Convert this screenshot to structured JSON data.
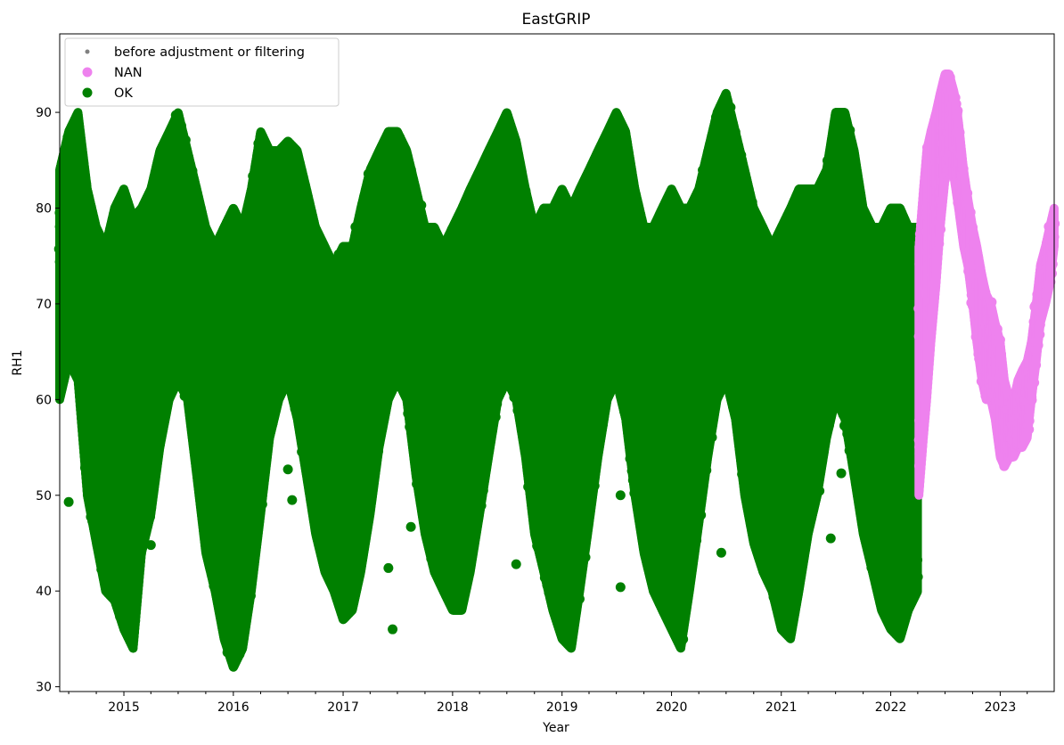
{
  "chart_data": {
    "type": "scatter",
    "title": "EastGRIP",
    "xlabel": "Year",
    "ylabel": "RH1",
    "xlim": [
      "2014-06-01",
      "2023-06-30"
    ],
    "ylim": [
      29.5,
      98.2
    ],
    "x_ticks": [
      "2015",
      "2016",
      "2017",
      "2018",
      "2019",
      "2020",
      "2021",
      "2022",
      "2023"
    ],
    "y_ticks": [
      30,
      40,
      50,
      60,
      70,
      80,
      90
    ],
    "grid": false,
    "legend": {
      "placement": "upper-left",
      "entries": [
        {
          "label": "before adjustment or filtering",
          "color": "#808080",
          "marker": "small-dot"
        },
        {
          "label": "NAN",
          "color": "#ee82ee",
          "marker": "dot"
        },
        {
          "label": "OK",
          "color": "#008000",
          "marker": "dot"
        }
      ]
    },
    "series": [
      {
        "name": "OK",
        "color": "#008000",
        "x": [
          "2014-06-01",
          "2014-07-01",
          "2014-08-01",
          "2014-09-01",
          "2014-10-01",
          "2014-11-01",
          "2014-12-01",
          "2015-01-01",
          "2015-02-01",
          "2015-03-01",
          "2015-04-01",
          "2015-05-01",
          "2015-06-01",
          "2015-07-01",
          "2015-08-01",
          "2015-09-01",
          "2015-10-01",
          "2015-11-01",
          "2015-12-01",
          "2016-01-01",
          "2016-02-01",
          "2016-03-01",
          "2016-04-01",
          "2016-05-01",
          "2016-06-01",
          "2016-07-01",
          "2016-08-01",
          "2016-09-01",
          "2016-10-01",
          "2016-11-01",
          "2016-12-01",
          "2017-01-01",
          "2017-02-01",
          "2017-03-01",
          "2017-04-01",
          "2017-05-01",
          "2017-06-01",
          "2017-07-01",
          "2017-08-01",
          "2017-09-01",
          "2017-10-01",
          "2017-11-01",
          "2017-12-01",
          "2018-01-01",
          "2018-02-01",
          "2018-03-01",
          "2018-04-01",
          "2018-05-01",
          "2018-06-01",
          "2018-07-01",
          "2018-08-01",
          "2018-09-01",
          "2018-10-01",
          "2018-11-01",
          "2018-12-01",
          "2019-01-01",
          "2019-02-01",
          "2019-03-01",
          "2019-04-01",
          "2019-05-01",
          "2019-06-01",
          "2019-07-01",
          "2019-08-01",
          "2019-09-01",
          "2019-10-01",
          "2019-11-01",
          "2019-12-01",
          "2020-01-01",
          "2020-02-01",
          "2020-03-01",
          "2020-04-01",
          "2020-05-01",
          "2020-06-01",
          "2020-07-01",
          "2020-08-01",
          "2020-09-01",
          "2020-10-01",
          "2020-11-01",
          "2020-12-01",
          "2021-01-01",
          "2021-02-01",
          "2021-03-01",
          "2021-04-01",
          "2021-05-01",
          "2021-06-01",
          "2021-07-01",
          "2021-08-01",
          "2021-09-01",
          "2021-10-01",
          "2021-11-01",
          "2021-12-01",
          "2022-01-01",
          "2022-02-01",
          "2022-03-01",
          "2022-04-01"
        ],
        "y_min": [
          60,
          64,
          62,
          50,
          45,
          40,
          39,
          36,
          34,
          44,
          48,
          55,
          60,
          62,
          60,
          52,
          44,
          40,
          35,
          32,
          34,
          40,
          48,
          56,
          60,
          62,
          58,
          52,
          46,
          42,
          40,
          37,
          38,
          42,
          48,
          55,
          60,
          62,
          60,
          52,
          46,
          42,
          40,
          38,
          38,
          42,
          48,
          54,
          60,
          62,
          60,
          54,
          46,
          42,
          38,
          35,
          34,
          40,
          47,
          54,
          60,
          62,
          58,
          50,
          44,
          40,
          38,
          36,
          34,
          40,
          47,
          54,
          60,
          62,
          58,
          50,
          45,
          42,
          40,
          36,
          35,
          40,
          46,
          50,
          56,
          60,
          58,
          52,
          46,
          42,
          38,
          36,
          35,
          38,
          40
        ],
        "y_max": [
          84,
          88,
          90,
          82,
          78,
          76,
          80,
          82,
          79,
          80,
          82,
          86,
          88,
          90,
          86,
          82,
          78,
          76,
          78,
          80,
          78,
          82,
          88,
          86,
          86,
          87,
          86,
          82,
          78,
          76,
          74,
          76,
          76,
          80,
          84,
          86,
          88,
          88,
          86,
          82,
          78,
          78,
          76,
          78,
          80,
          82,
          84,
          86,
          88,
          90,
          87,
          82,
          78,
          80,
          80,
          82,
          80,
          82,
          84,
          86,
          88,
          90,
          88,
          82,
          78,
          78,
          80,
          82,
          80,
          80,
          82,
          86,
          90,
          92,
          88,
          84,
          80,
          78,
          76,
          78,
          80,
          82,
          82,
          82,
          84,
          90,
          90,
          86,
          80,
          78,
          78,
          80,
          80,
          78,
          78
        ],
        "outliers": [
          {
            "x": "2014-07-01",
            "y": 49.3
          },
          {
            "x": "2015-04-01",
            "y": 44.8
          },
          {
            "x": "2016-07-01",
            "y": 52.7
          },
          {
            "x": "2016-07-15",
            "y": 49.5
          },
          {
            "x": "2017-06-15",
            "y": 36.0
          },
          {
            "x": "2017-06-01",
            "y": 42.4
          },
          {
            "x": "2017-08-15",
            "y": 46.7
          },
          {
            "x": "2018-08-01",
            "y": 42.8
          },
          {
            "x": "2019-07-15",
            "y": 50.0
          },
          {
            "x": "2019-07-15",
            "y": 40.4
          },
          {
            "x": "2020-06-15",
            "y": 44.0
          },
          {
            "x": "2021-06-15",
            "y": 45.5
          },
          {
            "x": "2021-07-20",
            "y": 52.3
          }
        ]
      },
      {
        "name": "NAN",
        "color": "#ee82ee",
        "x": [
          "2022-04-05",
          "2022-04-20",
          "2022-05-01",
          "2022-05-15",
          "2022-06-01",
          "2022-06-15",
          "2022-07-01",
          "2022-07-15",
          "2022-08-01",
          "2022-08-15",
          "2022-09-01",
          "2022-09-15",
          "2022-10-01",
          "2022-10-15",
          "2022-11-01",
          "2022-11-15",
          "2022-12-01",
          "2022-12-15",
          "2023-01-01",
          "2023-01-15",
          "2023-02-01",
          "2023-02-15",
          "2023-03-01",
          "2023-03-15",
          "2023-04-01",
          "2023-04-15",
          "2023-05-01",
          "2023-05-15",
          "2023-06-01",
          "2023-06-15",
          "2023-06-30"
        ],
        "y_min": [
          50,
          56,
          60,
          66,
          72,
          78,
          83,
          85,
          83,
          80,
          76,
          74,
          70,
          66,
          62,
          60,
          60,
          58,
          54,
          53,
          54,
          54,
          55,
          55,
          56,
          60,
          64,
          68,
          70,
          72,
          76
        ],
        "y_max": [
          76,
          82,
          86,
          88,
          90,
          92,
          94,
          94,
          92,
          89,
          84,
          81,
          78,
          76,
          73,
          71,
          70,
          68,
          66,
          62,
          60,
          60,
          62,
          63,
          64,
          66,
          70,
          74,
          76,
          78,
          80
        ]
      }
    ]
  }
}
